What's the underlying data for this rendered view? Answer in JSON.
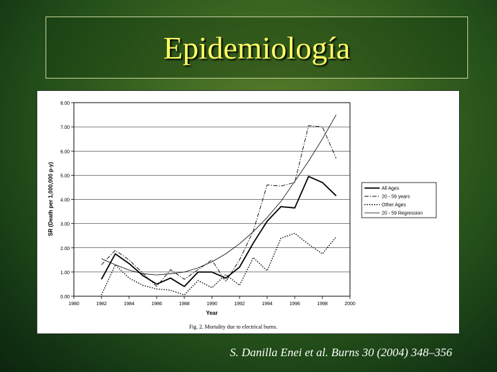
{
  "slide": {
    "title": "Epidemiología",
    "citation": "S. Danilla Enei et al. Burns 30 (2004) 348–356"
  },
  "chart_data": {
    "type": "line",
    "title": "",
    "caption": "Fig. 2. Mortality due to electrical burns.",
    "xlabel": "Year",
    "ylabel": "SR (Death per 1,000,000 p-y)",
    "xlim": [
      1980,
      2000
    ],
    "ylim": [
      0,
      8
    ],
    "x_ticks": [
      1980,
      1982,
      1984,
      1986,
      1988,
      1990,
      1992,
      1994,
      1996,
      1998,
      2000
    ],
    "y_ticks": [
      0,
      1,
      2,
      3,
      4,
      5,
      6,
      7,
      8
    ],
    "x_tick_labels": [
      "1980",
      "1982",
      "1984",
      "1986",
      "1988",
      "1990",
      "1992",
      "1994",
      "1996",
      "1998",
      "2000"
    ],
    "y_tick_labels": [
      "0.00",
      "1.00",
      "2.00",
      "3.00",
      "4.00",
      "5.00",
      "6.00",
      "7.00",
      "8.00"
    ],
    "grid": "horizontal",
    "legend_position": "right",
    "x": [
      1982,
      1983,
      1984,
      1985,
      1986,
      1987,
      1988,
      1989,
      1990,
      1991,
      1992,
      1993,
      1994,
      1995,
      1996,
      1997,
      1998,
      1999
    ],
    "series": [
      {
        "name": "All Ages",
        "style": "solid-bold",
        "color": "#000000",
        "values": [
          0.7,
          1.75,
          1.35,
          0.85,
          0.5,
          0.75,
          0.4,
          1.0,
          1.0,
          0.75,
          1.2,
          2.2,
          3.1,
          3.7,
          3.65,
          4.95,
          4.7,
          4.15
        ]
      },
      {
        "name": "20 - 59 years",
        "style": "dash-dot",
        "color": "#000000",
        "values": [
          1.3,
          1.9,
          1.5,
          0.95,
          0.4,
          1.1,
          0.7,
          1.1,
          1.5,
          0.6,
          1.5,
          2.7,
          4.6,
          4.55,
          4.7,
          7.05,
          7.0,
          5.7
        ]
      },
      {
        "name": "Other Ages",
        "style": "dotted",
        "color": "#000000",
        "values": [
          0.05,
          1.3,
          0.75,
          0.45,
          0.3,
          0.25,
          0.05,
          0.65,
          0.35,
          0.9,
          0.45,
          1.6,
          1.05,
          2.4,
          2.6,
          2.15,
          1.75,
          2.45
        ]
      },
      {
        "name": "20 - 59 Regression",
        "style": "thin-solid",
        "color": "#000000",
        "values": [
          1.55,
          1.3,
          1.08,
          0.93,
          0.88,
          0.93,
          1.0,
          1.17,
          1.42,
          1.75,
          2.17,
          2.67,
          3.25,
          3.92,
          4.75,
          5.58,
          6.5,
          7.5
        ]
      }
    ]
  }
}
